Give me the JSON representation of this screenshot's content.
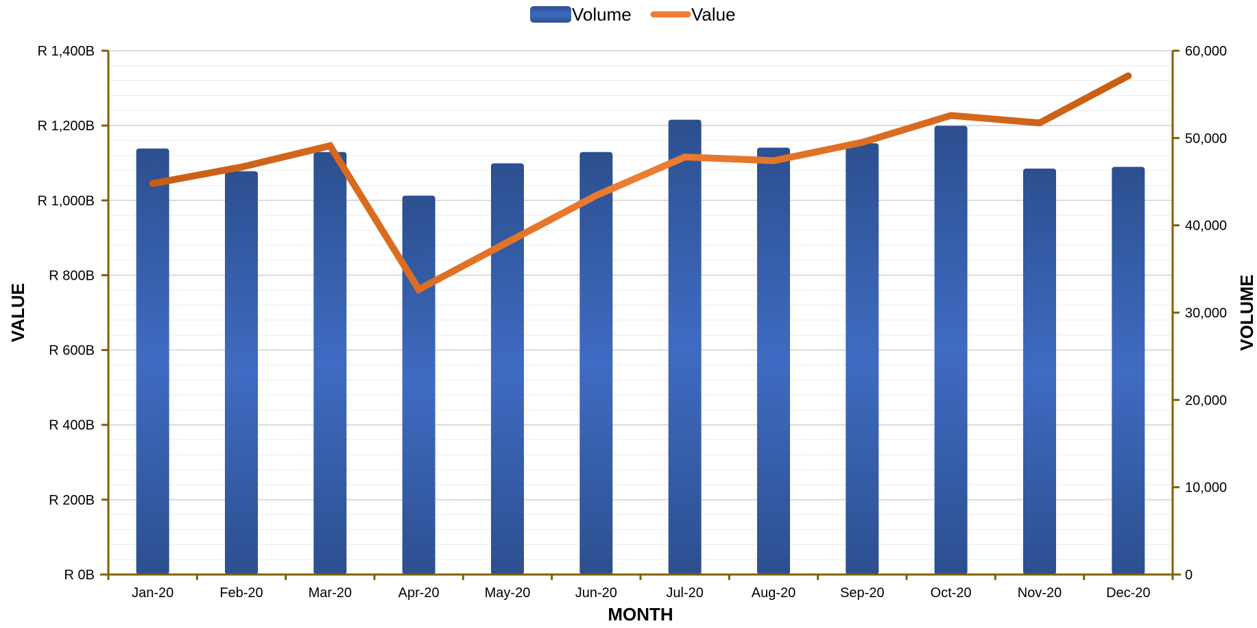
{
  "chart_data": {
    "type": "bar",
    "categories": [
      "Jan-20",
      "Feb-20",
      "Mar-20",
      "Apr-20",
      "May-20",
      "Jun-20",
      "Jul-20",
      "Aug-20",
      "Sep-20",
      "Oct-20",
      "Nov-20",
      "Dec-20"
    ],
    "series": [
      {
        "name": "Volume",
        "type": "bar",
        "axis": "right",
        "values": [
          48800,
          46200,
          48400,
          43400,
          47100,
          48400,
          52100,
          48900,
          49400,
          51400,
          46500,
          46700
        ]
      },
      {
        "name": "Value",
        "type": "line",
        "axis": "left",
        "values": [
          1045,
          1089,
          1146,
          762,
          888,
          1013,
          1116,
          1106,
          1155,
          1227,
          1207,
          1333
        ]
      }
    ],
    "xlabel": "MONTH",
    "ylabel": "VALUE",
    "y2label": "VOLUME",
    "ylim": [
      0,
      1400
    ],
    "y2lim": [
      0,
      60000
    ],
    "y_ticks": [
      "R 0B",
      "R 200B",
      "R 400B",
      "R 600B",
      "R 800B",
      "R 1,000B",
      "R 1,200B",
      "R 1,400B"
    ],
    "y2_ticks": [
      "0",
      "10,000",
      "20,000",
      "30,000",
      "40,000",
      "50,000",
      "60,000"
    ],
    "grid": true,
    "legend_position": "top-center",
    "colors": {
      "bar_dark": "#2c4f8f",
      "bar_light": "#3f6bc2",
      "line_start": "#c55a11",
      "line_mid": "#ed7d31",
      "axis": "#806000",
      "grid_major": "#d0d0d0",
      "grid_minor": "#ebebeb"
    }
  }
}
